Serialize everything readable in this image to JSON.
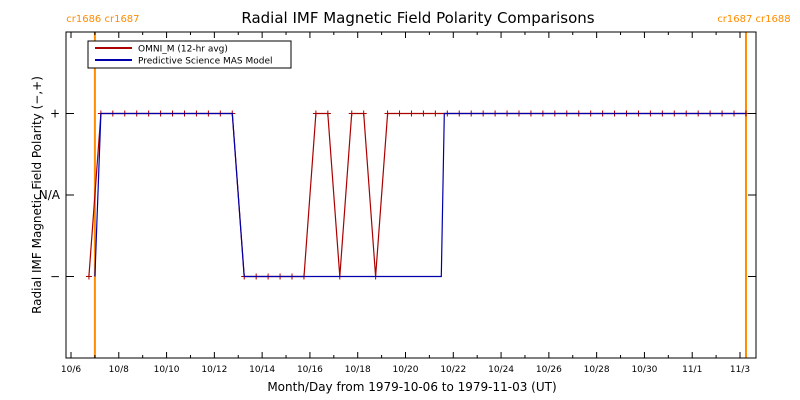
{
  "chart_data": {
    "type": "line",
    "title": "Radial IMF Magnetic Field Polarity Comparisons",
    "xlabel": "Month/Day from 1979-10-06 to 1979-11-03 (UT)",
    "ylabel": "Radial IMF Magnetic Field Polarity (−,+)",
    "xlim": [
      "1979-10-06",
      "1979-11-03"
    ],
    "ylim": [
      -2,
      2
    ],
    "x_tick_labels": [
      "10/6",
      "10/8",
      "10/10",
      "10/12",
      "10/14",
      "10/16",
      "10/18",
      "10/20",
      "10/22",
      "10/24",
      "10/26",
      "10/28",
      "10/30",
      "11/1",
      "11/3"
    ],
    "x_ticks": [
      "1979-10-06",
      "1979-10-08",
      "1979-10-10",
      "1979-10-12",
      "1979-10-14",
      "1979-10-16",
      "1979-10-18",
      "1979-10-20",
      "1979-10-22",
      "1979-10-24",
      "1979-10-26",
      "1979-10-28",
      "1979-10-30",
      "1979-11-01",
      "1979-11-03"
    ],
    "y_ticks": [
      {
        "value": 1,
        "label": "+"
      },
      {
        "value": 0,
        "label": "N/A"
      },
      {
        "value": -1,
        "label": "−"
      }
    ],
    "legend": {
      "placement": "top-left",
      "entries": [
        {
          "name": "OMNI_M (12-hr avg)",
          "color": "#aa0000"
        },
        {
          "name": "Predictive Science MAS Model",
          "color": "#0000aa"
        }
      ]
    },
    "rotations": [
      {
        "date": "1979-10-07 00:00",
        "labels": [
          "cr1686",
          "cr1687"
        ],
        "color": "#ff8c00"
      },
      {
        "date": "1979-11-03 06:00",
        "labels": [
          "cr1687",
          "cr1688"
        ],
        "color": "#ff8c00"
      }
    ],
    "series": [
      {
        "name": "OMNI_M (12-hr avg)",
        "color": "#aa0000",
        "marker": "+",
        "points": [
          [
            "1979-10-06 18:00",
            -1
          ],
          [
            "1979-10-07 06:00",
            1
          ],
          [
            "1979-10-07 18:00",
            1
          ],
          [
            "1979-10-08 06:00",
            1
          ],
          [
            "1979-10-08 18:00",
            1
          ],
          [
            "1979-10-09 06:00",
            1
          ],
          [
            "1979-10-09 18:00",
            1
          ],
          [
            "1979-10-10 06:00",
            1
          ],
          [
            "1979-10-10 18:00",
            1
          ],
          [
            "1979-10-11 06:00",
            1
          ],
          [
            "1979-10-11 18:00",
            1
          ],
          [
            "1979-10-12 06:00",
            1
          ],
          [
            "1979-10-12 18:00",
            1
          ],
          [
            "1979-10-13 06:00",
            -1
          ],
          [
            "1979-10-13 18:00",
            -1
          ],
          [
            "1979-10-14 06:00",
            -1
          ],
          [
            "1979-10-14 18:00",
            -1
          ],
          [
            "1979-10-15 06:00",
            -1
          ],
          [
            "1979-10-15 18:00",
            -1
          ],
          [
            "1979-10-16 06:00",
            1
          ],
          [
            "1979-10-16 18:00",
            1
          ],
          [
            "1979-10-17 06:00",
            -1
          ],
          [
            "1979-10-17 18:00",
            1
          ],
          [
            "1979-10-18 06:00",
            1
          ],
          [
            "1979-10-18 18:00",
            -1
          ],
          [
            "1979-10-19 06:00",
            1
          ],
          [
            "1979-10-19 18:00",
            1
          ],
          [
            "1979-10-20 06:00",
            1
          ],
          [
            "1979-10-20 18:00",
            1
          ],
          [
            "1979-10-21 06:00",
            1
          ],
          [
            "1979-10-21 18:00",
            1
          ],
          [
            "1979-10-22 06:00",
            1
          ],
          [
            "1979-10-22 18:00",
            1
          ],
          [
            "1979-10-23 06:00",
            1
          ],
          [
            "1979-10-23 18:00",
            1
          ],
          [
            "1979-10-24 06:00",
            1
          ],
          [
            "1979-10-24 18:00",
            1
          ],
          [
            "1979-10-25 06:00",
            1
          ],
          [
            "1979-10-25 18:00",
            1
          ],
          [
            "1979-10-26 06:00",
            1
          ],
          [
            "1979-10-26 18:00",
            1
          ],
          [
            "1979-10-27 06:00",
            1
          ],
          [
            "1979-10-27 18:00",
            1
          ],
          [
            "1979-10-28 06:00",
            1
          ],
          [
            "1979-10-28 18:00",
            1
          ],
          [
            "1979-10-29 06:00",
            1
          ],
          [
            "1979-10-29 18:00",
            1
          ],
          [
            "1979-10-30 06:00",
            1
          ],
          [
            "1979-10-30 18:00",
            1
          ],
          [
            "1979-10-31 06:00",
            1
          ],
          [
            "1979-10-31 18:00",
            1
          ],
          [
            "1979-11-01 06:00",
            1
          ],
          [
            "1979-11-01 18:00",
            1
          ],
          [
            "1979-11-02 06:00",
            1
          ],
          [
            "1979-11-02 18:00",
            1
          ],
          [
            "1979-11-03 06:00",
            1
          ]
        ]
      },
      {
        "name": "Predictive Science MAS Model",
        "color": "#0000aa",
        "points": [
          [
            "1979-10-07 00:00",
            -1
          ],
          [
            "1979-10-07 06:00",
            1
          ],
          [
            "1979-10-12 18:00",
            1
          ],
          [
            "1979-10-13 06:00",
            -1
          ],
          [
            "1979-10-21 12:00",
            -1
          ],
          [
            "1979-10-21 15:00",
            1
          ],
          [
            "1979-11-03 06:00",
            1
          ]
        ]
      }
    ]
  }
}
